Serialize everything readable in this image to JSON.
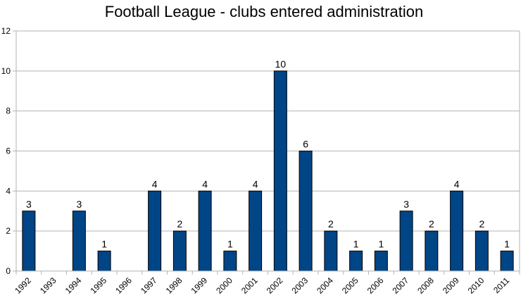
{
  "chart_data": {
    "type": "bar",
    "title": "Football League - clubs entered administration",
    "xlabel": "",
    "ylabel": "",
    "categories": [
      "1992",
      "1993",
      "1994",
      "1995",
      "1996",
      "1997",
      "1998",
      "1999",
      "2000",
      "2001",
      "2002",
      "2003",
      "2004",
      "2005",
      "2006",
      "2007",
      "2008",
      "2009",
      "2010",
      "2011"
    ],
    "values": [
      3,
      0,
      3,
      1,
      0,
      4,
      2,
      4,
      1,
      4,
      10,
      6,
      2,
      1,
      1,
      3,
      2,
      4,
      2,
      1
    ],
    "data_labels": [
      "3",
      "",
      "3",
      "1",
      "",
      "4",
      "2",
      "4",
      "1",
      "4",
      "10",
      "6",
      "2",
      "1",
      "1",
      "3",
      "2",
      "4",
      "2",
      "1"
    ],
    "ylim": [
      0,
      12
    ],
    "yticks": [
      "0",
      "2",
      "4",
      "6",
      "8",
      "10",
      "12"
    ],
    "grid": true,
    "legend": "none",
    "bar_color": "#004586",
    "grid_color": "#b3b3b3"
  }
}
